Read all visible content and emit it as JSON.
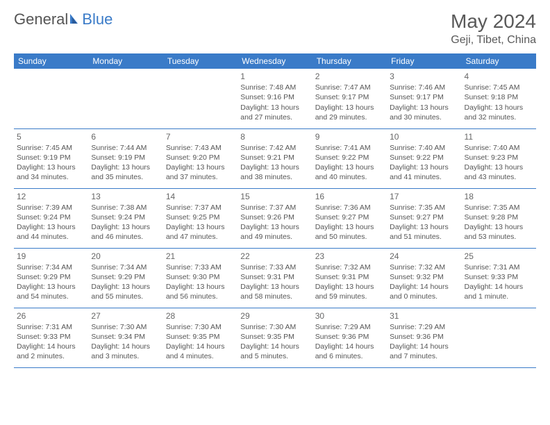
{
  "logo": {
    "text_gray": "General",
    "text_blue": "Blue"
  },
  "title": "May 2024",
  "location": "Geji, Tibet, China",
  "colors": {
    "header_bg": "#3a7bc8",
    "header_fg": "#ffffff",
    "border": "#3a7bc8",
    "text": "#555555",
    "title_color": "#595959"
  },
  "day_headers": [
    "Sunday",
    "Monday",
    "Tuesday",
    "Wednesday",
    "Thursday",
    "Friday",
    "Saturday"
  ],
  "weeks": [
    [
      null,
      null,
      null,
      {
        "n": "1",
        "sr": "7:48 AM",
        "ss": "9:16 PM",
        "dl": "13 hours and 27 minutes."
      },
      {
        "n": "2",
        "sr": "7:47 AM",
        "ss": "9:17 PM",
        "dl": "13 hours and 29 minutes."
      },
      {
        "n": "3",
        "sr": "7:46 AM",
        "ss": "9:17 PM",
        "dl": "13 hours and 30 minutes."
      },
      {
        "n": "4",
        "sr": "7:45 AM",
        "ss": "9:18 PM",
        "dl": "13 hours and 32 minutes."
      }
    ],
    [
      {
        "n": "5",
        "sr": "7:45 AM",
        "ss": "9:19 PM",
        "dl": "13 hours and 34 minutes."
      },
      {
        "n": "6",
        "sr": "7:44 AM",
        "ss": "9:19 PM",
        "dl": "13 hours and 35 minutes."
      },
      {
        "n": "7",
        "sr": "7:43 AM",
        "ss": "9:20 PM",
        "dl": "13 hours and 37 minutes."
      },
      {
        "n": "8",
        "sr": "7:42 AM",
        "ss": "9:21 PM",
        "dl": "13 hours and 38 minutes."
      },
      {
        "n": "9",
        "sr": "7:41 AM",
        "ss": "9:22 PM",
        "dl": "13 hours and 40 minutes."
      },
      {
        "n": "10",
        "sr": "7:40 AM",
        "ss": "9:22 PM",
        "dl": "13 hours and 41 minutes."
      },
      {
        "n": "11",
        "sr": "7:40 AM",
        "ss": "9:23 PM",
        "dl": "13 hours and 43 minutes."
      }
    ],
    [
      {
        "n": "12",
        "sr": "7:39 AM",
        "ss": "9:24 PM",
        "dl": "13 hours and 44 minutes."
      },
      {
        "n": "13",
        "sr": "7:38 AM",
        "ss": "9:24 PM",
        "dl": "13 hours and 46 minutes."
      },
      {
        "n": "14",
        "sr": "7:37 AM",
        "ss": "9:25 PM",
        "dl": "13 hours and 47 minutes."
      },
      {
        "n": "15",
        "sr": "7:37 AM",
        "ss": "9:26 PM",
        "dl": "13 hours and 49 minutes."
      },
      {
        "n": "16",
        "sr": "7:36 AM",
        "ss": "9:27 PM",
        "dl": "13 hours and 50 minutes."
      },
      {
        "n": "17",
        "sr": "7:35 AM",
        "ss": "9:27 PM",
        "dl": "13 hours and 51 minutes."
      },
      {
        "n": "18",
        "sr": "7:35 AM",
        "ss": "9:28 PM",
        "dl": "13 hours and 53 minutes."
      }
    ],
    [
      {
        "n": "19",
        "sr": "7:34 AM",
        "ss": "9:29 PM",
        "dl": "13 hours and 54 minutes."
      },
      {
        "n": "20",
        "sr": "7:34 AM",
        "ss": "9:29 PM",
        "dl": "13 hours and 55 minutes."
      },
      {
        "n": "21",
        "sr": "7:33 AM",
        "ss": "9:30 PM",
        "dl": "13 hours and 56 minutes."
      },
      {
        "n": "22",
        "sr": "7:33 AM",
        "ss": "9:31 PM",
        "dl": "13 hours and 58 minutes."
      },
      {
        "n": "23",
        "sr": "7:32 AM",
        "ss": "9:31 PM",
        "dl": "13 hours and 59 minutes."
      },
      {
        "n": "24",
        "sr": "7:32 AM",
        "ss": "9:32 PM",
        "dl": "14 hours and 0 minutes."
      },
      {
        "n": "25",
        "sr": "7:31 AM",
        "ss": "9:33 PM",
        "dl": "14 hours and 1 minute."
      }
    ],
    [
      {
        "n": "26",
        "sr": "7:31 AM",
        "ss": "9:33 PM",
        "dl": "14 hours and 2 minutes."
      },
      {
        "n": "27",
        "sr": "7:30 AM",
        "ss": "9:34 PM",
        "dl": "14 hours and 3 minutes."
      },
      {
        "n": "28",
        "sr": "7:30 AM",
        "ss": "9:35 PM",
        "dl": "14 hours and 4 minutes."
      },
      {
        "n": "29",
        "sr": "7:30 AM",
        "ss": "9:35 PM",
        "dl": "14 hours and 5 minutes."
      },
      {
        "n": "30",
        "sr": "7:29 AM",
        "ss": "9:36 PM",
        "dl": "14 hours and 6 minutes."
      },
      {
        "n": "31",
        "sr": "7:29 AM",
        "ss": "9:36 PM",
        "dl": "14 hours and 7 minutes."
      },
      null
    ]
  ],
  "labels": {
    "sunrise": "Sunrise:",
    "sunset": "Sunset:",
    "daylight": "Daylight:"
  }
}
